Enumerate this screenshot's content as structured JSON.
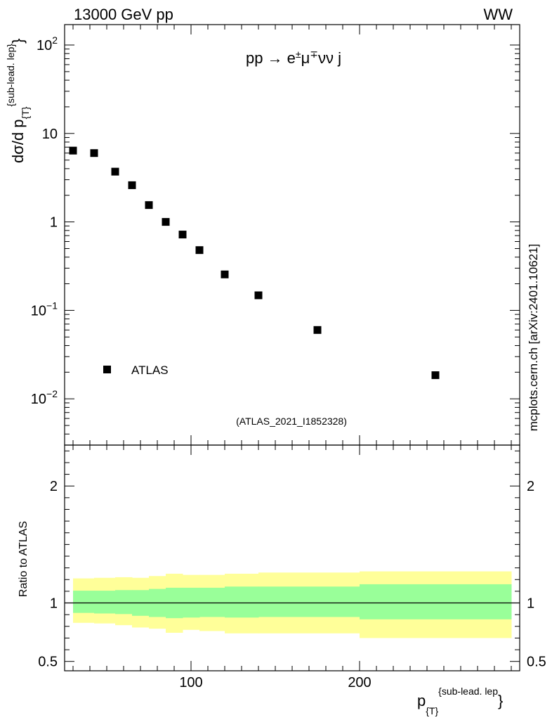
{
  "header": {
    "left": "13000 GeV pp",
    "right": "WW"
  },
  "side_label": "mcplots.cern.ch [arXiv:2401.10621]",
  "chart_data": [
    {
      "type": "scatter",
      "title": "pp → e±μ∓νν j",
      "title_parts": {
        "pre": "pp  →  e",
        "sup1": "±",
        "mid": "μ",
        "sup2": "∓",
        "post": "νν j"
      },
      "ylabel": {
        "main": "dσ/d p",
        "sub": "{T}",
        "sup": "{sub-lead. lep}",
        "close": "}"
      },
      "yscale": "log",
      "ylim": [
        0.003,
        170
      ],
      "xlim": [
        25,
        295
      ],
      "ytick_labels": [
        {
          "value": 0.01,
          "base": "10",
          "exp": "−2"
        },
        {
          "value": 0.1,
          "base": "10",
          "exp": "−1"
        },
        {
          "value": 1,
          "base": "1",
          "exp": ""
        },
        {
          "value": 10,
          "base": "10",
          "exp": ""
        },
        {
          "value": 100,
          "base": "10",
          "exp": "2"
        }
      ],
      "series": [
        {
          "name": "ATLAS",
          "x": [
            30,
            42.5,
            55,
            65,
            75,
            85,
            95,
            105,
            120,
            140,
            175,
            245
          ],
          "y": [
            6.4,
            6.0,
            3.7,
            2.6,
            1.55,
            1.0,
            0.72,
            0.48,
            0.255,
            0.148,
            0.06,
            0.0185
          ]
        }
      ],
      "legend": {
        "label": "ATLAS",
        "position": "bottom-left"
      },
      "annotation": "(ATLAS_2021_I1852328)"
    },
    {
      "type": "area",
      "ylabel": "Ratio to ATLAS",
      "xlabel": {
        "main": "p",
        "sub": "{T}",
        "sup": "{sub-lead. lep",
        "close": "}"
      },
      "ylim": [
        0.42,
        2.35
      ],
      "xlim": [
        25,
        295
      ],
      "ytick_labels": [
        {
          "value": 0.5,
          "label": "0.5"
        },
        {
          "value": 1,
          "label": "1"
        },
        {
          "value": 2,
          "label": "2"
        }
      ],
      "xtick_labels": [
        {
          "value": 100,
          "label": "100"
        },
        {
          "value": 200,
          "label": "200"
        }
      ],
      "bin_edges": [
        30,
        42.5,
        55,
        65,
        75,
        85,
        95,
        105,
        120,
        140,
        200,
        290
      ],
      "bands": [
        {
          "name": "stat+syst",
          "color": "#ffff99",
          "low": [
            0.83,
            0.825,
            0.81,
            0.79,
            0.78,
            0.745,
            0.77,
            0.76,
            0.74,
            0.74,
            0.7
          ],
          "high": [
            1.21,
            1.215,
            1.22,
            1.215,
            1.23,
            1.25,
            1.24,
            1.24,
            1.25,
            1.26,
            1.27
          ]
        },
        {
          "name": "stat",
          "color": "#99ff99",
          "low": [
            0.915,
            0.91,
            0.905,
            0.89,
            0.88,
            0.87,
            0.875,
            0.88,
            0.875,
            0.88,
            0.86
          ],
          "high": [
            1.105,
            1.105,
            1.11,
            1.11,
            1.12,
            1.13,
            1.13,
            1.13,
            1.14,
            1.14,
            1.16
          ]
        }
      ],
      "reference_line": 1
    }
  ],
  "colors": {
    "marker": "#000000",
    "band_outer": "#ffff99",
    "band_inner": "#99ff99",
    "annotation": "#999999",
    "side_label": "#888888"
  }
}
